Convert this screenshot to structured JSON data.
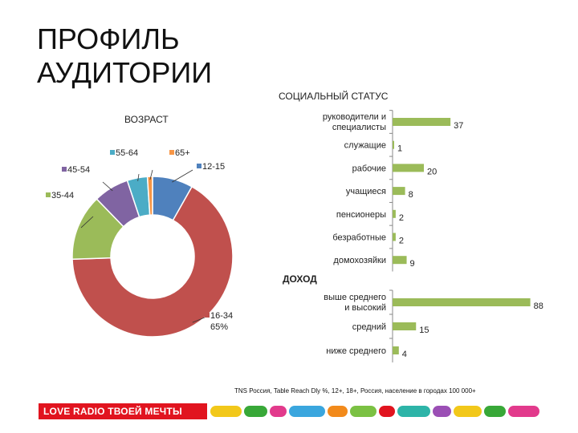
{
  "page": {
    "title_line1": "ПРОФИЛЬ",
    "title_line2": "АУДИТОРИИ"
  },
  "chart_data": [
    {
      "type": "pie",
      "variant": "donut",
      "title": "ВОЗРАСТ",
      "slices": [
        {
          "label": "12-15",
          "value": 8,
          "color": "#4f81bd"
        },
        {
          "label": "16-34",
          "value": 65,
          "value_label": "65%",
          "color": "#c0504d"
        },
        {
          "label": "35-44",
          "value": 13,
          "color": "#9bbb59"
        },
        {
          "label": "45-54",
          "value": 7,
          "color": "#8064a2"
        },
        {
          "label": "55-64",
          "value": 4,
          "color": "#4bacc6"
        },
        {
          "label": "65+",
          "value": 1,
          "color": "#f79646"
        }
      ]
    },
    {
      "type": "bar",
      "orientation": "horizontal",
      "title": "СОЦИАЛЬНЫЙ СТАТУС",
      "categories": [
        "руководители и специалисты",
        "служащие",
        "рабочие",
        "учащиеся",
        "пенсионеры",
        "безработные",
        "домохозяйки"
      ],
      "values": [
        37,
        1,
        20,
        8,
        2,
        2,
        9
      ],
      "color": "#9bbb59",
      "xlim": [
        0,
        100
      ]
    },
    {
      "type": "bar",
      "orientation": "horizontal",
      "title": "ДОХОД",
      "categories": [
        "выше среднего и высокий",
        "средний",
        "ниже среднего"
      ],
      "values": [
        88,
        15,
        4
      ],
      "color": "#9bbb59",
      "xlim": [
        0,
        100
      ]
    }
  ],
  "footnote": "TNS Россия, Table Reach Dly %, 12+, 18+, Россия, население в городах 100 000+",
  "brand": {
    "logo_text": "LOVE RADIO ТВОЕЙ МЕЧТЫ",
    "accent": "#e1141f"
  }
}
